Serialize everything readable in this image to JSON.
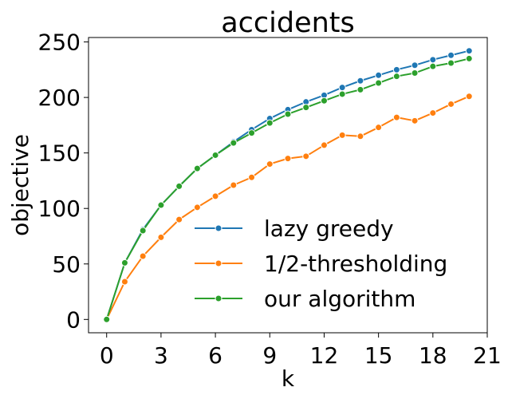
{
  "chart_data": {
    "type": "line",
    "title": "accidents",
    "xlabel": "k",
    "ylabel": "objective",
    "xlim": [
      -1,
      21
    ],
    "ylim": [
      -12,
      254
    ],
    "xticks": [
      0,
      3,
      6,
      9,
      12,
      15,
      18,
      21
    ],
    "xtick_labels": [
      "0",
      "3",
      "6",
      "9",
      "12",
      "15",
      "18",
      "21"
    ],
    "yticks": [
      0,
      50,
      100,
      150,
      200,
      250
    ],
    "ytick_labels": [
      "0",
      "50",
      "100",
      "150",
      "200",
      "250"
    ],
    "grid": false,
    "legend_position": "lower-right",
    "x": [
      0,
      1,
      2,
      3,
      4,
      5,
      6,
      7,
      8,
      9,
      10,
      11,
      12,
      13,
      14,
      15,
      16,
      17,
      18,
      19,
      20
    ],
    "series": [
      {
        "name": "lazy greedy",
        "color": "#1f77b4",
        "values": [
          0,
          51,
          81,
          103,
          120,
          136,
          148,
          160,
          171,
          181,
          189,
          196,
          202,
          209,
          215,
          220,
          225,
          229,
          234,
          238,
          242
        ]
      },
      {
        "name": "1/2-thresholding",
        "color": "#ff7f0e",
        "values": [
          0,
          34,
          57,
          74,
          90,
          101,
          111,
          121,
          128,
          140,
          145,
          147,
          157,
          166,
          165,
          173,
          182,
          179,
          186,
          194,
          201
        ]
      },
      {
        "name": "our algorithm",
        "color": "#2ca02c",
        "values": [
          0,
          51,
          80,
          103,
          120,
          136,
          148,
          159,
          168,
          177,
          185,
          191,
          197,
          203,
          207,
          213,
          219,
          222,
          228,
          231,
          235
        ]
      }
    ]
  }
}
